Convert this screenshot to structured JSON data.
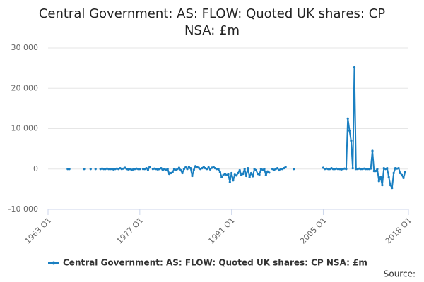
{
  "chart_data": {
    "type": "line",
    "title": "Central Government: AS: FLOW: Quoted UK shares: CP NSA: £m",
    "source": "Source:",
    "categories": [
      "1963 Q1",
      null,
      null,
      null,
      null,
      null,
      null,
      null,
      null,
      null,
      null,
      null,
      null,
      null,
      null,
      null,
      null,
      null,
      null,
      null,
      null,
      null,
      null,
      null,
      null,
      null,
      null,
      null,
      null,
      null,
      null,
      null,
      null,
      null,
      null,
      null,
      null,
      null,
      null,
      null,
      null,
      null,
      null,
      null,
      null,
      null,
      null,
      null,
      null,
      null,
      null,
      null,
      null,
      null,
      null,
      null,
      "1977 Q1",
      null,
      null,
      null,
      null,
      null,
      null,
      null,
      null,
      null,
      null,
      null,
      null,
      null,
      null,
      null,
      null,
      null,
      null,
      null,
      null,
      null,
      null,
      null,
      null,
      null,
      null,
      null,
      null,
      null,
      null,
      null,
      null,
      null,
      null,
      null,
      null,
      null,
      null,
      null,
      null,
      null,
      null,
      null,
      null,
      null,
      null,
      null,
      null,
      null,
      null,
      null,
      null,
      null,
      null,
      null,
      "1991 Q1",
      null,
      null,
      null,
      null,
      null,
      null,
      null,
      null,
      null,
      null,
      null,
      null,
      null,
      null,
      null,
      null,
      null,
      null,
      null,
      null,
      null,
      null,
      null,
      null,
      null,
      null,
      null,
      null,
      null,
      null,
      null,
      null,
      null,
      null,
      null,
      null,
      null,
      null,
      null,
      null,
      null,
      null,
      null,
      null,
      null,
      null,
      null,
      null,
      null,
      null,
      null,
      null,
      null,
      null,
      null,
      "2005 Q1",
      null,
      null,
      null,
      null,
      null,
      null,
      null,
      null,
      null,
      null,
      null,
      null,
      null,
      null,
      null,
      null,
      null,
      null,
      null,
      null,
      null,
      null,
      null,
      null,
      null,
      null,
      null,
      null,
      null,
      null,
      null,
      null,
      null,
      null,
      null,
      null,
      null,
      null,
      null,
      null,
      null,
      null,
      null,
      null,
      null,
      null,
      null,
      null,
      null,
      null,
      null,
      "2018 Q1"
    ],
    "series": [
      {
        "name": "Central Government: AS: FLOW: Quoted UK shares: CP NSA: £m",
        "color": "#1a7fc1",
        "values": [
          null,
          null,
          null,
          null,
          null,
          null,
          null,
          null,
          null,
          null,
          null,
          null,
          0,
          0,
          null,
          null,
          null,
          null,
          null,
          null,
          null,
          null,
          0,
          null,
          null,
          null,
          0,
          null,
          null,
          0,
          null,
          null,
          0,
          100,
          0,
          0,
          100,
          0,
          0,
          0,
          -100,
          0,
          100,
          0,
          200,
          0,
          100,
          300,
          0,
          -100,
          0,
          -200,
          -100,
          0,
          100,
          0,
          0,
          null,
          0,
          0,
          200,
          -200,
          500,
          null,
          0,
          100,
          0,
          -100,
          0,
          200,
          -300,
          0,
          -200,
          0,
          -1200,
          -1000,
          -800,
          0,
          -200,
          0,
          300,
          -300,
          -1000,
          0,
          400,
          0,
          500,
          200,
          -1700,
          -200,
          700,
          500,
          300,
          0,
          200,
          500,
          200,
          0,
          400,
          -100,
          300,
          500,
          200,
          0,
          0,
          -800,
          -2000,
          -1500,
          -1200,
          -1500,
          -1300,
          -3200,
          -1000,
          -2800,
          -1400,
          -1600,
          -1000,
          -300,
          -1500,
          -1200,
          0,
          -1700,
          200,
          -2000,
          -1000,
          -1800,
          0,
          -300,
          -1200,
          -1400,
          0,
          -200,
          0,
          -1500,
          -600,
          -900,
          null,
          0,
          -200,
          0,
          200,
          -300,
          0,
          0,
          200,
          500,
          null,
          null,
          null,
          null,
          0,
          null,
          null,
          null,
          null,
          null,
          null,
          null,
          null,
          null,
          null,
          null,
          null,
          null,
          null,
          null,
          null,
          null,
          300,
          0,
          100,
          0,
          0,
          200,
          0,
          0,
          100,
          0,
          0,
          -100,
          0,
          100,
          0,
          12500,
          9500,
          7000,
          200,
          25200,
          0,
          0,
          100,
          0,
          0,
          100,
          0,
          0,
          0,
          100,
          4500,
          -500,
          -500,
          0,
          -3000,
          -2000,
          -4000,
          200,
          0,
          200,
          -2000,
          -4000,
          -4700,
          -1000,
          200,
          100,
          200,
          -1000,
          -1500,
          -2200,
          -700,
          null,
          null
        ]
      }
    ],
    "ylim": [
      -10000,
      30000
    ],
    "yticks": [
      {
        "value": -10000,
        "label": "-10 000"
      },
      0,
      {
        "value": 10000,
        "label": "10 000"
      },
      {
        "value": 20000,
        "label": "20 000"
      },
      {
        "value": 30000,
        "label": "30 000"
      }
    ],
    "grid": true
  }
}
